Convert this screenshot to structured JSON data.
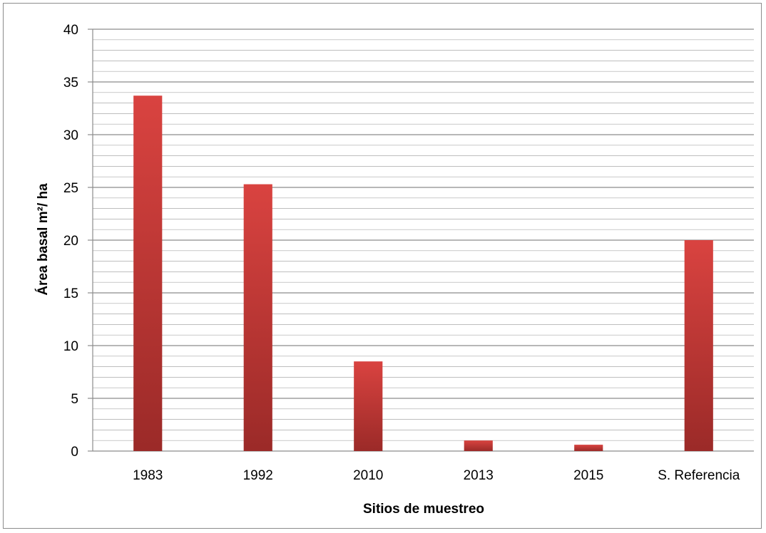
{
  "chart_data": {
    "type": "bar",
    "title": "",
    "xlabel": "Sitios de muestreo",
    "ylabel": "Área basal m²/ ha",
    "categories": [
      "1983",
      "1992",
      "2010",
      "2013",
      "2015",
      "S. Referencia"
    ],
    "values": [
      33.7,
      25.3,
      8.5,
      1.0,
      0.6,
      20.0
    ],
    "ylim": [
      0,
      40
    ],
    "y_major_ticks": [
      0,
      5,
      10,
      15,
      20,
      25,
      30,
      35,
      40
    ],
    "y_minor_step": 1,
    "grid": true,
    "legend": "none",
    "bar_color_top": "#d94340",
    "bar_color_bottom": "#9b2a28",
    "grid_color": "#8c8c8c"
  }
}
